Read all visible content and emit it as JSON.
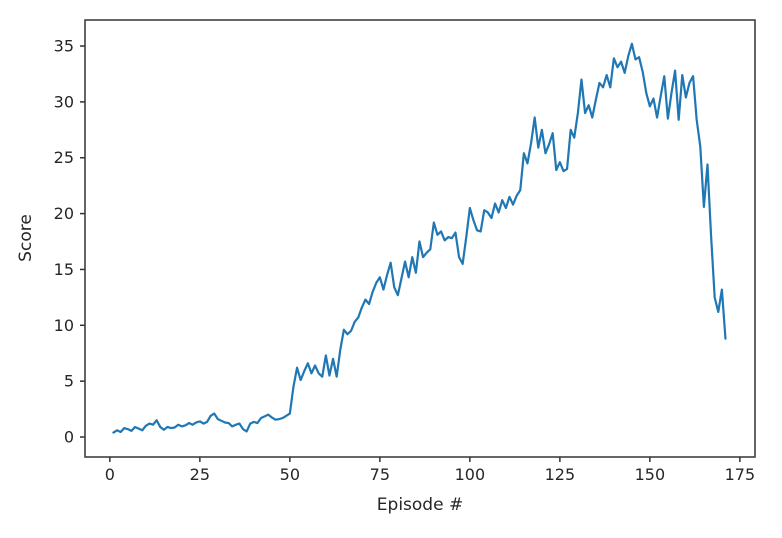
{
  "chart_data": {
    "type": "line",
    "title": "",
    "xlabel": "Episode #",
    "ylabel": "Score",
    "xlim": [
      -6.9,
      179.2
    ],
    "ylim": [
      -1.79,
      37.33
    ],
    "xticks": [
      0,
      25,
      50,
      75,
      100,
      125,
      150,
      175
    ],
    "yticks": [
      0,
      5,
      10,
      15,
      20,
      25,
      30,
      35
    ],
    "grid": false,
    "legend": "none",
    "line_color": "#1f77b4",
    "spine_color": "#333333",
    "text_color": "#262626",
    "background_color": "#ffffff",
    "x": [
      1,
      2,
      3,
      4,
      5,
      6,
      7,
      8,
      9,
      10,
      11,
      12,
      13,
      14,
      15,
      16,
      17,
      18,
      19,
      20,
      21,
      22,
      23,
      24,
      25,
      26,
      27,
      28,
      29,
      30,
      31,
      32,
      33,
      34,
      35,
      36,
      37,
      38,
      39,
      40,
      41,
      42,
      43,
      44,
      45,
      46,
      47,
      48,
      49,
      50,
      51,
      52,
      53,
      54,
      55,
      56,
      57,
      58,
      59,
      60,
      61,
      62,
      63,
      64,
      65,
      66,
      67,
      68,
      69,
      70,
      71,
      72,
      73,
      74,
      75,
      76,
      77,
      78,
      79,
      80,
      81,
      82,
      83,
      84,
      85,
      86,
      87,
      88,
      89,
      90,
      91,
      92,
      93,
      94,
      95,
      96,
      97,
      98,
      99,
      100,
      101,
      102,
      103,
      104,
      105,
      106,
      107,
      108,
      109,
      110,
      111,
      112,
      113,
      114,
      115,
      116,
      117,
      118,
      119,
      120,
      121,
      122,
      123,
      124,
      125,
      126,
      127,
      128,
      129,
      130,
      131,
      132,
      133,
      134,
      135,
      136,
      137,
      138,
      139,
      140,
      141,
      142,
      143,
      144,
      145,
      146,
      147,
      148,
      149,
      150,
      151,
      152,
      153,
      154,
      155,
      156,
      157,
      158,
      159,
      160,
      161,
      162,
      163,
      164,
      165,
      166,
      167,
      168,
      169,
      170,
      171
    ],
    "y": [
      0.4,
      0.6,
      0.45,
      0.8,
      0.7,
      0.55,
      0.9,
      0.75,
      0.6,
      1.0,
      1.2,
      1.1,
      1.5,
      0.9,
      0.65,
      0.9,
      0.8,
      0.85,
      1.1,
      0.95,
      1.05,
      1.25,
      1.1,
      1.3,
      1.4,
      1.2,
      1.35,
      1.9,
      2.1,
      1.6,
      1.45,
      1.3,
      1.25,
      0.95,
      1.1,
      1.2,
      0.7,
      0.5,
      1.2,
      1.35,
      1.25,
      1.7,
      1.85,
      2.0,
      1.75,
      1.55,
      1.6,
      1.7,
      1.9,
      2.1,
      4.5,
      6.2,
      5.1,
      5.9,
      6.6,
      5.7,
      6.4,
      5.7,
      5.4,
      7.3,
      5.5,
      7.0,
      5.4,
      7.8,
      9.6,
      9.2,
      9.5,
      10.3,
      10.7,
      11.6,
      12.3,
      11.9,
      13.0,
      13.8,
      14.3,
      13.2,
      14.5,
      15.6,
      13.4,
      12.7,
      14.2,
      15.7,
      14.3,
      16.1,
      14.7,
      17.5,
      16.1,
      16.5,
      16.8,
      19.2,
      18.1,
      18.4,
      17.6,
      17.9,
      17.8,
      18.3,
      16.1,
      15.5,
      17.9,
      20.5,
      19.4,
      18.5,
      18.4,
      20.3,
      20.1,
      19.6,
      20.9,
      20.1,
      21.2,
      20.5,
      21.5,
      20.8,
      21.6,
      22.1,
      25.4,
      24.5,
      26.3,
      28.6,
      25.9,
      27.5,
      25.4,
      26.2,
      27.2,
      23.9,
      24.6,
      23.8,
      24.0,
      27.5,
      26.8,
      29.0,
      32.0,
      29.0,
      29.7,
      28.6,
      30.2,
      31.7,
      31.3,
      32.4,
      31.3,
      33.9,
      33.1,
      33.6,
      32.6,
      34.1,
      35.2,
      33.8,
      34.0,
      32.7,
      30.8,
      29.6,
      30.3,
      28.6,
      30.5,
      32.3,
      28.5,
      30.8,
      32.8,
      28.4,
      32.4,
      30.4,
      31.7,
      32.3,
      28.4,
      26.0,
      20.6,
      24.4,
      18.0,
      12.5,
      11.2,
      13.2,
      8.8
    ]
  }
}
